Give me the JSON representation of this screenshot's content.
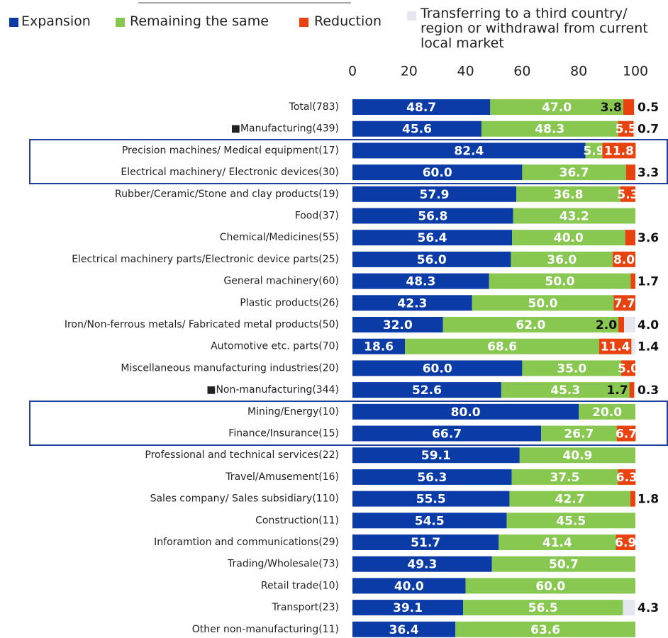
{
  "chart_data": {
    "type": "stacked-bar-horizontal",
    "categories": [
      "Total(783)",
      "■Manufacturing(439)",
      "Precision machines/ Medical equipment(17)",
      "Electrical machinery/ Electronic devices(30)",
      "Rubber/Ceramic/Stone and clay products(19)",
      "Food(37)",
      "Chemical/Medicines(55)",
      "Electrical machinery parts/Electronic device parts(25)",
      "General machinery(60)",
      "Plastic products(26)",
      "Iron/Non-ferrous metals/ Fabricated metal products(50)",
      "Automotive etc. parts(70)",
      "Miscellaneous manufacturing industries(20)",
      "■Non-manufacturing(344)",
      "Mining/Energy(10)",
      "Finance/Insurance(15)",
      "Professional and technical services(22)",
      "Travel/Amusement(16)",
      "Sales company/ Sales subsidiary(110)",
      "Construction(11)",
      "Inforamtion and communications(29)",
      "Trading/Wholesale(73)",
      "Retail trade(10)",
      "Transport(23)",
      "Other non-manufacturing(11)"
    ],
    "series": [
      {
        "name": "Expansion",
        "color": "#0b3ba6",
        "values": [
          48.7,
          45.6,
          82.4,
          60.0,
          57.9,
          56.8,
          56.4,
          56.0,
          48.3,
          42.3,
          32.0,
          18.6,
          60.0,
          52.6,
          80.0,
          66.7,
          59.1,
          56.3,
          55.5,
          54.5,
          51.7,
          49.3,
          40.0,
          39.1,
          36.4
        ],
        "value_labels": [
          "48.7",
          "45.6",
          "82.4",
          "60.0",
          "57.9",
          "56.8",
          "56.4",
          "56.0",
          "48.3",
          "42.3",
          "32.0",
          "18.6",
          "60.0",
          "52.6",
          "80.0",
          "66.7",
          "59.1",
          "56.3",
          "55.5",
          "54.5",
          "51.7",
          "49.3",
          "40.0",
          "39.1",
          "36.4"
        ]
      },
      {
        "name": "Remaining the same",
        "color": "#88c750",
        "values": [
          47.0,
          48.3,
          5.9,
          36.7,
          36.8,
          43.2,
          40.0,
          36.0,
          50.0,
          50.0,
          62.0,
          68.6,
          35.0,
          45.3,
          20.0,
          26.7,
          40.9,
          37.5,
          42.7,
          45.5,
          41.4,
          50.7,
          60.0,
          56.5,
          63.6
        ],
        "value_labels": [
          "47.0",
          "48.3",
          "5.9",
          "36.7",
          "36.8",
          "43.2",
          "40.0",
          "36.0",
          "50.0",
          "50.0",
          "62.0",
          "68.6",
          "35.0",
          "45.3",
          "20.0",
          "26.7",
          "40.9",
          "37.5",
          "42.7",
          "45.5",
          "41.4",
          "50.7",
          "60.0",
          "56.5",
          "63.6"
        ]
      },
      {
        "name": "Reduction",
        "color": "#e8430f",
        "values": [
          3.8,
          5.5,
          11.8,
          3.3,
          5.3,
          null,
          3.6,
          8.0,
          1.7,
          7.7,
          2.0,
          11.4,
          5.0,
          1.7,
          null,
          6.7,
          null,
          6.3,
          1.8,
          null,
          6.9,
          null,
          null,
          null,
          null
        ],
        "value_labels": [
          "3.8",
          "5.5",
          "11.8",
          "3.3",
          "5.3",
          null,
          "3.6",
          "8.0",
          "1.7",
          "7.7",
          "2.0",
          "11.4",
          "5.0",
          "1.7",
          null,
          "6.7",
          null,
          "6.3",
          "1.8",
          null,
          "6.9",
          null,
          null,
          null,
          null
        ]
      },
      {
        "name": "Transferring to a third country/ region or withdrawal from current local market",
        "color": "#e4e7ee",
        "values": [
          0.5,
          0.7,
          null,
          null,
          null,
          null,
          null,
          null,
          null,
          null,
          4.0,
          1.4,
          null,
          0.3,
          null,
          null,
          null,
          null,
          null,
          null,
          null,
          null,
          null,
          4.3,
          null
        ],
        "value_labels": [
          "0.5",
          "0.7",
          null,
          null,
          null,
          null,
          null,
          null,
          null,
          null,
          "4.0",
          "1.4",
          null,
          "0.3",
          null,
          null,
          null,
          null,
          null,
          null,
          null,
          null,
          null,
          "4.3",
          null
        ]
      }
    ],
    "xlim": [
      0,
      100
    ],
    "xticks": [
      0,
      20,
      40,
      60,
      80,
      100
    ]
  }
}
